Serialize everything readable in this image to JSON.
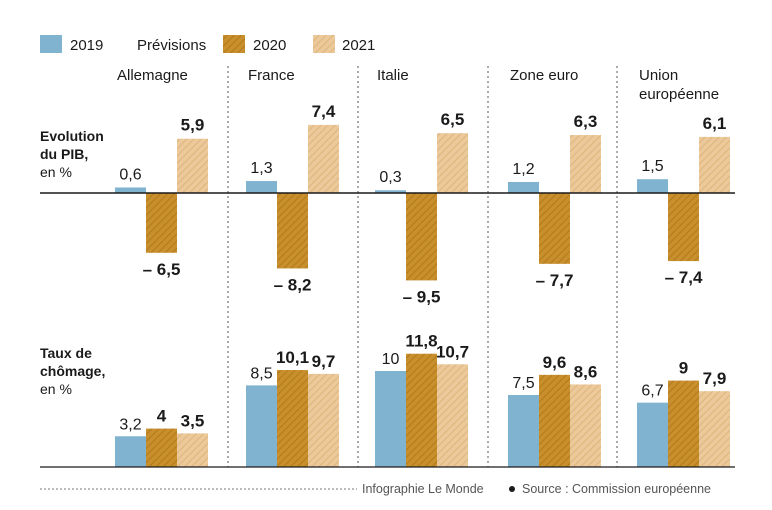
{
  "legend": {
    "items": [
      {
        "label": "2019",
        "color": "#7fb3d0",
        "hatched": false
      },
      {
        "label": "2020",
        "color": "#c88f2c",
        "hatched": true
      },
      {
        "label": "2021",
        "color": "#ecc99a",
        "hatched": true
      }
    ],
    "forecast_label": "Prévisions"
  },
  "colors": {
    "y2019": "#7fb3d0",
    "y2020": "#c88f2c",
    "y2021": "#ecc99a",
    "separator": "#555555",
    "baseline": "#1a1a1a"
  },
  "chart_data": [
    {
      "type": "bar",
      "title": "",
      "metric_label": [
        "Evolution",
        "du PIB,"
      ],
      "unit_label": "en %",
      "categories": [
        "Allemagne",
        "France",
        "Italie",
        "Zone euro",
        "Union européenne"
      ],
      "category_lines": [
        [
          "Allemagne"
        ],
        [
          "France"
        ],
        [
          "Italie"
        ],
        [
          "Zone euro"
        ],
        [
          "Union",
          "européenne"
        ]
      ],
      "series": [
        {
          "name": "2019",
          "values": [
            0.6,
            1.3,
            0.3,
            1.2,
            1.5
          ],
          "labels": [
            "0,6",
            "1,3",
            "0,3",
            "1,2",
            "1,5"
          ]
        },
        {
          "name": "2020",
          "values": [
            -6.5,
            -8.2,
            -9.5,
            -7.7,
            -7.4
          ],
          "labels": [
            "– 6,5",
            "– 8,2",
            "– 9,5",
            "– 7,7",
            "– 7,4"
          ]
        },
        {
          "name": "2021",
          "values": [
            5.9,
            7.4,
            6.5,
            6.3,
            6.1
          ],
          "labels": [
            "5,9",
            "7,4",
            "6,5",
            "6,3",
            "6,1"
          ]
        }
      ]
    },
    {
      "type": "bar",
      "title": "",
      "metric_label": [
        "Taux de",
        "chômage,"
      ],
      "unit_label": "en %",
      "categories": [
        "Allemagne",
        "France",
        "Italie",
        "Zone euro",
        "Union européenne"
      ],
      "series": [
        {
          "name": "2019",
          "values": [
            3.2,
            8.5,
            10,
            7.5,
            6.7
          ],
          "labels": [
            "3,2",
            "8,5",
            "10",
            "7,5",
            "6,7"
          ]
        },
        {
          "name": "2020",
          "values": [
            4,
            10.1,
            11.8,
            9.6,
            9
          ],
          "labels": [
            "4",
            "10,1",
            "11,8",
            "9,6",
            "9"
          ]
        },
        {
          "name": "2021",
          "values": [
            3.5,
            9.7,
            10.7,
            8.6,
            7.9
          ],
          "labels": [
            "3,5",
            "9,7",
            "10,7",
            "8,6",
            "7,9"
          ]
        }
      ]
    }
  ],
  "footer": {
    "credit": "Infographie Le Monde",
    "source": "Source : Commission européenne"
  }
}
